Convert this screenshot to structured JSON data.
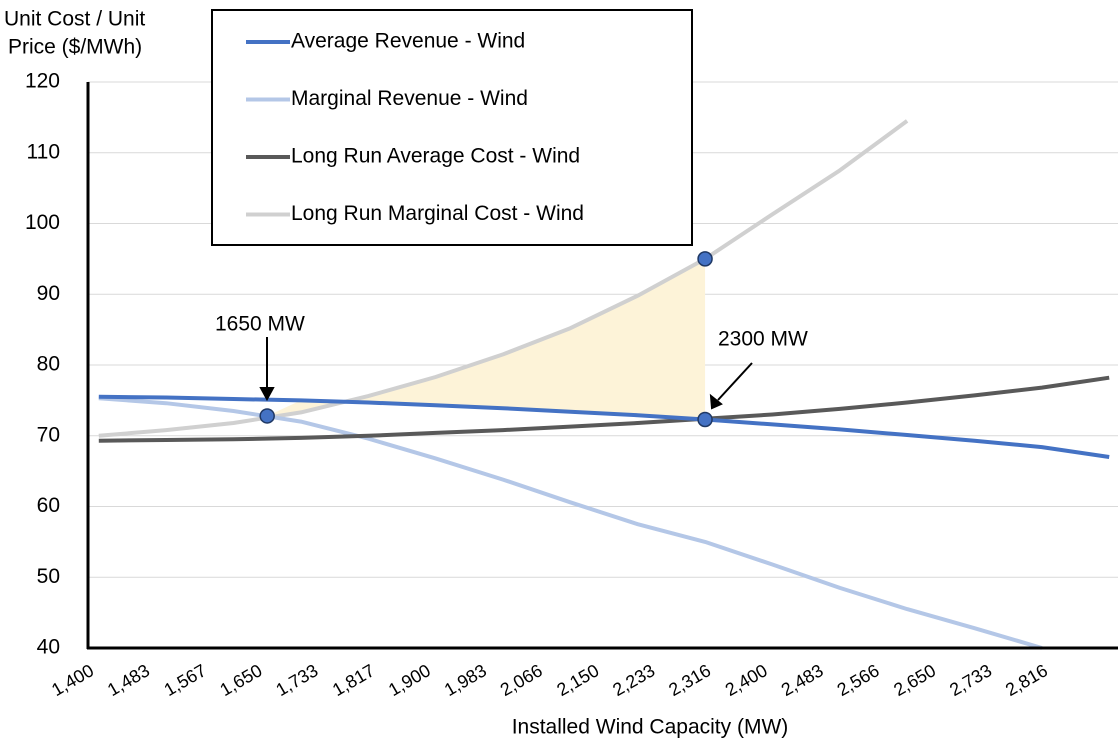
{
  "chart_data": {
    "type": "line",
    "x_label": "Installed Wind Capacity (MW)",
    "y_label": [
      "Unit Cost / Unit",
      "Price ($/MWh)"
    ],
    "x": [
      1400,
      1500,
      1600,
      1700,
      1800,
      1900,
      2000,
      2100,
      2200,
      2300,
      2400,
      2500,
      2600,
      2700,
      2800,
      2900
    ],
    "series": [
      {
        "name": "Average Revenue - Wind",
        "color": "#4472c4",
        "values": [
          75.5,
          75.4,
          75.2,
          75.0,
          74.7,
          74.3,
          73.9,
          73.4,
          72.9,
          72.3,
          71.6,
          70.9,
          70.1,
          69.3,
          68.4,
          67.0
        ]
      },
      {
        "name": "Marginal Revenue - Wind",
        "color": "#b4c7e7",
        "values": [
          75.3,
          74.6,
          73.5,
          72.0,
          69.6,
          66.8,
          63.8,
          60.6,
          57.5,
          55.0,
          51.8,
          48.5,
          45.5,
          42.8,
          40.0,
          null
        ]
      },
      {
        "name": "Long Run Average Cost - Wind",
        "color": "#595959",
        "values": [
          69.3,
          69.4,
          69.5,
          69.7,
          70.0,
          70.4,
          70.8,
          71.3,
          71.8,
          72.4,
          73.0,
          73.8,
          74.7,
          75.7,
          76.8,
          78.2
        ]
      },
      {
        "name": "Long Run Marginal Cost - Wind",
        "color": "#d0d0d0",
        "values": [
          70.0,
          70.8,
          71.8,
          73.3,
          75.6,
          78.3,
          81.5,
          85.2,
          89.8,
          95.0,
          101.3,
          107.5,
          114.5,
          null,
          null,
          null
        ]
      }
    ],
    "points": [
      {
        "x": 1650,
        "y": 72.8
      },
      {
        "x": 2300,
        "y": 95.0
      },
      {
        "x": 2300,
        "y": 72.3
      }
    ],
    "annotations": [
      "1650 MW",
      "2300 MW"
    ],
    "xlim": [
      1384,
      2913
    ],
    "ylim": [
      40,
      120
    ],
    "yticks": [
      40,
      50,
      60,
      70,
      80,
      90,
      100,
      110,
      120
    ],
    "xticks": [
      {
        "value": 1400,
        "label": "1,400"
      },
      {
        "value": 1483,
        "label": "1,483"
      },
      {
        "value": 1567,
        "label": "1,567"
      },
      {
        "value": 1650,
        "label": "1,650"
      },
      {
        "value": 1733,
        "label": "1,733"
      },
      {
        "value": 1817,
        "label": "1,817"
      },
      {
        "value": 1900,
        "label": "1,900"
      },
      {
        "value": 1983,
        "label": "1,983"
      },
      {
        "value": 2066,
        "label": "2,066"
      },
      {
        "value": 2150,
        "label": "2,150"
      },
      {
        "value": 2233,
        "label": "2,233"
      },
      {
        "value": 2316,
        "label": "2,316"
      },
      {
        "value": 2400,
        "label": "2,400"
      },
      {
        "value": 2483,
        "label": "2,483"
      },
      {
        "value": 2566,
        "label": "2,566"
      },
      {
        "value": 2650,
        "label": "2,650"
      },
      {
        "value": 2733,
        "label": "2,733"
      },
      {
        "value": 2816,
        "label": "2,816"
      }
    ],
    "grid": true,
    "marker_color": "#4472c4",
    "shade_color": "#fdf3d8"
  }
}
